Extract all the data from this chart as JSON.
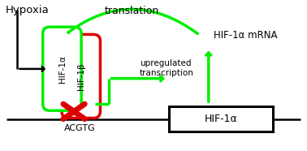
{
  "bg_color": "#ffffff",
  "green": "#00ee00",
  "red": "#dd0000",
  "black": "#000000",
  "hypoxia_text": "Hypoxia",
  "translation_text": "translation",
  "mrna_text": "HIF-1α mRNA",
  "upregulated_text": "upregulated\ntranscription",
  "acgtg_text": "ACGTG",
  "hif1a_box_text": "HIF-1α",
  "hif1a_pill_text": "HIF-1α",
  "hif1b_pill_text": "HIF-1β",
  "figsize": [
    3.78,
    1.86
  ],
  "dpi": 100,
  "xlim": [
    0,
    10
  ],
  "ylim": [
    0,
    5
  ]
}
